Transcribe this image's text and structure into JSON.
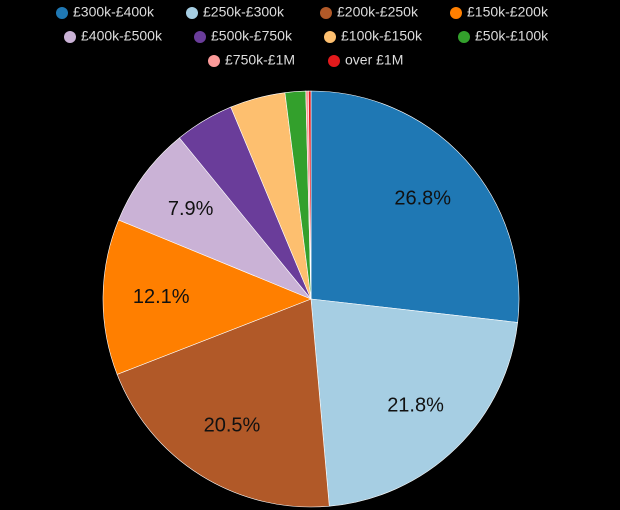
{
  "chart_data": {
    "type": "pie",
    "categories": [
      "£300k-£400k",
      "£250k-£300k",
      "£200k-£250k",
      "£150k-£200k",
      "£400k-£500k",
      "£500k-£750k",
      "£100k-£150k",
      "£50k-£100k",
      "£750k-£1M",
      "over £1M"
    ],
    "values": [
      26.8,
      21.8,
      20.5,
      12.1,
      7.9,
      4.6,
      4.3,
      1.6,
      0.2,
      0.2
    ],
    "value_labels": [
      "26.8%",
      "21.8%",
      "20.5%",
      "12.1%",
      "7.9%",
      null,
      null,
      null,
      null,
      null
    ],
    "colors": [
      "#1f78b4",
      "#a6cee3",
      "#b15928",
      "#ff7f00",
      "#cab2d6",
      "#6a3d9a",
      "#fdbf6f",
      "#33a02c",
      "#fb9a99",
      "#e31a1c"
    ],
    "legend": "top"
  }
}
